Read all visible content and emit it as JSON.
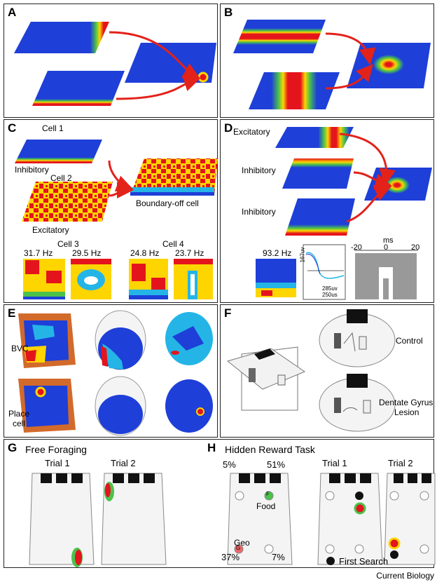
{
  "panels": {
    "A": {
      "label": "A"
    },
    "B": {
      "label": "B"
    },
    "C": {
      "label": "C",
      "cell1": "Cell 1",
      "inhibitory": "Inhibitory",
      "cell2": "Cell 2",
      "excitatory": "Excitatory",
      "boundary_off": "Boundary-off cell",
      "cell3": "Cell 3",
      "cell4": "Cell 4",
      "rates": [
        "31.7 Hz",
        "29.5 Hz",
        "24.8 Hz",
        "23.7 Hz"
      ]
    },
    "D": {
      "label": "D",
      "excitatory": "Excitatory",
      "inhibitory1": "Inhibitory",
      "inhibitory2": "Inhibitory",
      "rate": "93.2 Hz",
      "scale_v": "167uv",
      "scale_h1": "285uv",
      "scale_h2": "250us",
      "ms": "ms",
      "ticks": [
        "-20",
        "0",
        "20"
      ]
    },
    "E": {
      "label": "E",
      "bvc": "BVC",
      "place": "Place",
      "cell": "cell"
    },
    "F": {
      "label": "F",
      "control": "Control",
      "lesion1": "Dentate Gyrus",
      "lesion2": "Lesion"
    },
    "G": {
      "label": "G",
      "title": "Free Foraging",
      "trial1": "Trial 1",
      "trial2": "Trial 2"
    },
    "H": {
      "label": "H",
      "title": "Hidden Reward Task",
      "p_tl": "5%",
      "p_tr": "51%",
      "p_bl": "37%",
      "p_br": "7%",
      "food": "Food",
      "geo": "Geo",
      "F": "F",
      "G": "G",
      "trial1": "Trial 1",
      "trial2": "Trial 2",
      "first_search": "First Search"
    }
  },
  "footer": "Current Biology",
  "colors": {
    "field_blue": "#1e3fd8",
    "red": "#e4141c",
    "yellow": "#ffd500",
    "green": "#4bc24b",
    "arrow": "#e3221a",
    "cyan": "#24b5e6"
  }
}
